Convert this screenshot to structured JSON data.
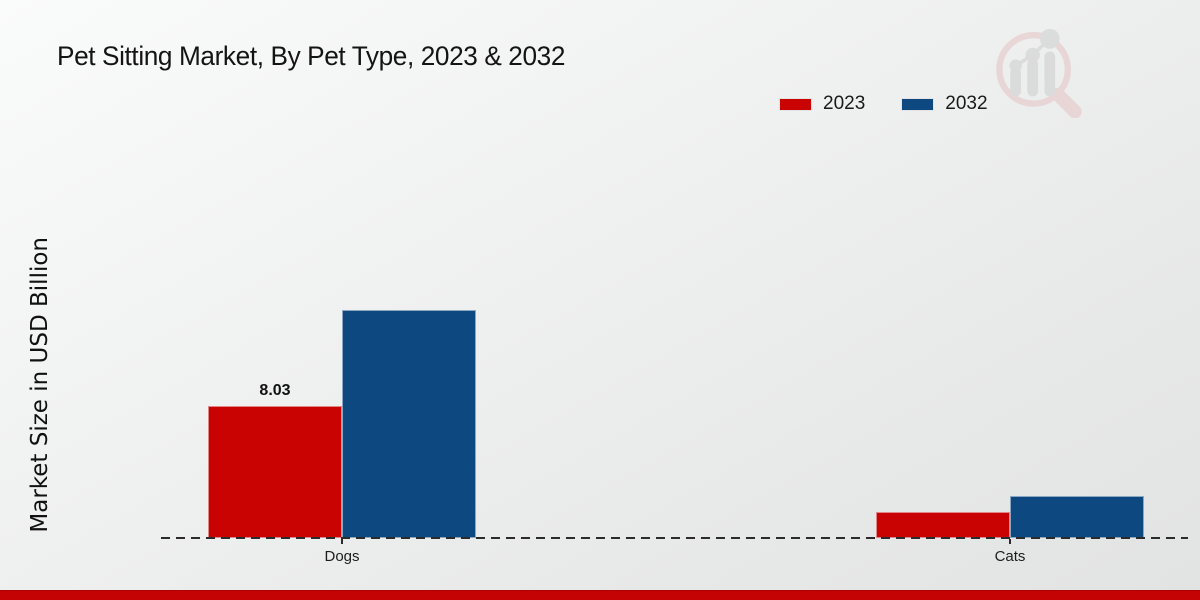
{
  "header": {
    "title": "Pet Sitting Market, By Pet Type, 2023 & 2032"
  },
  "y_axis": {
    "label": "Market Size in USD Billion"
  },
  "chart_data": {
    "type": "bar",
    "title": "Pet Sitting Market, By Pet Type, 2023 & 2032",
    "xlabel": "",
    "ylabel": "Market Size in USD Billion",
    "categories": [
      "Dogs",
      "Cats"
    ],
    "series": [
      {
        "name": "2023",
        "color": "#c90202",
        "values": [
          8.03,
          1.6
        ]
      },
      {
        "name": "2032",
        "color": "#0d4880",
        "values": [
          13.8,
          2.55
        ]
      }
    ],
    "value_labels": [
      {
        "series_index": 0,
        "category_index": 0,
        "text": "8.03"
      }
    ],
    "ylim": [
      0,
      15
    ],
    "grid": false,
    "legend_position": "top-right",
    "baseline_style": "dashed"
  },
  "branding": {
    "logo_icon": "magnifier-growth-chart-logo",
    "footer_color": "#c40404"
  }
}
